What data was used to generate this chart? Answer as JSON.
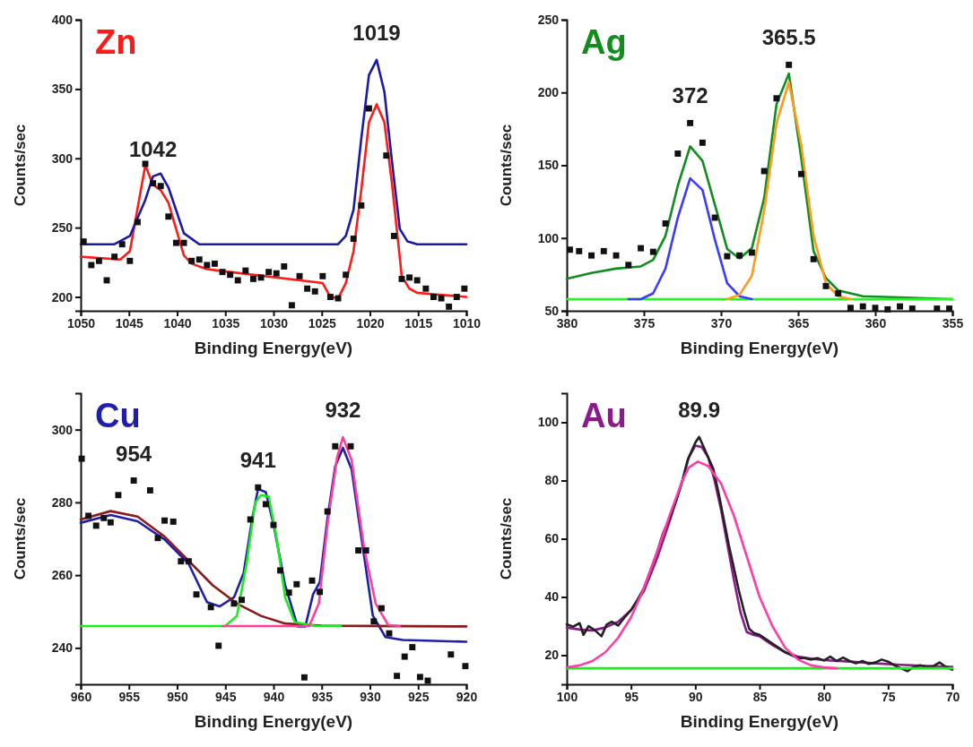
{
  "chart_data": [
    {
      "type": "line",
      "title": "Zn",
      "xlabel": "Binding Energy(eV)",
      "ylabel": "Counts/sec",
      "xlim": [
        1050,
        1010
      ],
      "xticks": [
        1050,
        1045,
        1040,
        1035,
        1030,
        1025,
        1020,
        1015,
        1010
      ],
      "ylim": [
        190,
        400
      ],
      "yticks": [
        200,
        250,
        300,
        350,
        400
      ],
      "annotations": [
        {
          "text": "1042",
          "x": 1042.5,
          "y": 287
        },
        {
          "text": "1019",
          "x": 1019.3,
          "y": 371
        }
      ],
      "series": [
        {
          "color": "#ff1a1a",
          "x": [
            1050,
            1045.9,
            1044.9,
            1043.3,
            1042.5,
            1041.7,
            1040.9,
            1039.3,
            1038.5,
            1036.9,
            1024.9,
            1024.1,
            1023.3,
            1022.5,
            1021.7,
            1020.9,
            1020.1,
            1019.3,
            1018.5,
            1017.7,
            1016.7,
            1015.9,
            1015.1,
            1013.4,
            1010
          ],
          "values": [
            229,
            227,
            233,
            295,
            281,
            277,
            268,
            230,
            224,
            220,
            210,
            200,
            199,
            210,
            233,
            277,
            326,
            339,
            326,
            281,
            215,
            206,
            203,
            202,
            200
          ]
        },
        {
          "color": "#1a1aa6",
          "x": [
            1050,
            1046.5,
            1044.9,
            1043.3,
            1042.5,
            1041.7,
            1040.9,
            1039.3,
            1037.7,
            1023.3,
            1022.5,
            1021.7,
            1020.9,
            1020.1,
            1019.3,
            1018.5,
            1017.7,
            1016.9,
            1016.1,
            1015.1,
            1010
          ],
          "values": [
            238,
            238,
            244,
            270,
            287,
            289,
            279,
            246,
            238,
            238,
            244,
            263,
            314,
            360,
            371,
            348,
            297,
            249,
            240,
            238,
            238
          ]
        },
        {
          "type": "scatter",
          "marker": "square",
          "color": "#111111",
          "x": [
            1049.7,
            1048.9,
            1048.1,
            1047.3,
            1046.5,
            1045.7,
            1044.9,
            1044.1,
            1043.3,
            1042.5,
            1041.7,
            1040.9,
            1040.1,
            1039.3,
            1038.5,
            1037.7,
            1036.9,
            1036.1,
            1035.3,
            1034.5,
            1033.7,
            1032.9,
            1032.1,
            1031.3,
            1030.5,
            1029.7,
            1028.9,
            1028.1,
            1027.3,
            1026.5,
            1025.7,
            1024.9,
            1024.1,
            1023.3,
            1022.5,
            1021.7,
            1020.9,
            1020.1,
            1018.3,
            1017.5,
            1016.7,
            1015.9,
            1015.1,
            1014.2,
            1013.4,
            1012.6,
            1011.8,
            1011,
            1010.2
          ],
          "values": [
            240,
            223,
            226,
            212,
            229,
            238,
            226,
            254,
            296,
            282,
            280,
            258,
            239,
            239,
            226,
            227,
            223,
            224,
            218,
            216,
            212,
            219,
            213,
            214,
            218,
            217,
            222,
            194,
            215,
            206,
            204,
            215,
            200,
            199,
            216,
            242,
            266,
            336,
            302,
            244,
            213,
            214,
            212,
            206,
            200,
            199,
            193,
            200,
            206
          ]
        }
      ]
    },
    {
      "type": "line",
      "title": "Ag",
      "xlabel": "Binding Energy(eV)",
      "ylabel": "Counts/sec",
      "xlim": [
        380,
        355
      ],
      "xticks": [
        380,
        375,
        370,
        365,
        360,
        355
      ],
      "ylim": [
        50,
        250
      ],
      "yticks": [
        50,
        100,
        150,
        200,
        250
      ],
      "annotations": [
        {
          "text": "372",
          "x": 372,
          "y": 179
        },
        {
          "text": "365.5",
          "x": 365.6,
          "y": 219
        }
      ],
      "series": [
        {
          "color": "#118c1f",
          "x": [
            380,
            378.4,
            376.8,
            375.2,
            374.4,
            373.6,
            372.8,
            372,
            371.2,
            370.4,
            369.6,
            368.8,
            368,
            367.2,
            366.4,
            365.6,
            364.8,
            364,
            363.2,
            362.4,
            360.8,
            355
          ],
          "values": [
            72,
            76,
            79,
            80.5,
            85,
            101.5,
            136,
            163,
            153,
            123,
            92.5,
            86,
            93,
            127.5,
            192,
            213,
            155,
            91,
            72.5,
            64,
            60,
            58
          ]
        },
        {
          "color": "#1aff1a",
          "x": [
            380,
            355
          ],
          "values": [
            58,
            58
          ]
        },
        {
          "color": "#3b3bff",
          "x": [
            376,
            375.2,
            374.4,
            373.6,
            372.8,
            372,
            371.2,
            370.4,
            369.6,
            368.8,
            368
          ],
          "values": [
            58,
            58,
            62,
            79,
            114,
            141,
            133,
            99,
            69,
            60,
            58
          ]
        },
        {
          "color": "#ff9a1a",
          "x": [
            369.6,
            368.8,
            368,
            367.2,
            366.4,
            365.6,
            364.8,
            364,
            363.2,
            362.4,
            361.6
          ],
          "values": [
            58,
            61,
            74,
            119,
            179,
            207,
            164,
            101.5,
            69,
            60,
            58
          ]
        },
        {
          "type": "scatter",
          "marker": "square",
          "color": "#111111",
          "x": [
            379.8,
            379.2,
            378.4,
            377.6,
            376.8,
            376,
            375.2,
            374.4,
            373.6,
            372.8,
            372,
            371.2,
            370.4,
            369.6,
            368.8,
            368,
            367.2,
            366.4,
            365.6,
            364.8,
            364,
            363.2,
            362.4,
            361.6,
            360.8,
            360,
            359.2,
            358.4,
            357.6,
            356,
            355.2
          ],
          "values": [
            92,
            91,
            88,
            91,
            88,
            81.5,
            93,
            90.5,
            110,
            158,
            179,
            165.5,
            114,
            87.5,
            88,
            90,
            146,
            196,
            219,
            144,
            85.5,
            67,
            62,
            52,
            53,
            52,
            51,
            53,
            51.5,
            51.5,
            51.5
          ]
        }
      ]
    },
    {
      "type": "line",
      "title": "Cu",
      "xlabel": "Binding Energy(eV)",
      "ylabel": "Counts/sec",
      "xlim": [
        960,
        920
      ],
      "xticks": [
        960,
        955,
        950,
        945,
        940,
        935,
        930,
        925,
        920
      ],
      "ylim": [
        230,
        310
      ],
      "yticks": [
        240,
        260,
        280,
        300
      ],
      "annotations": [
        {
          "text": "954",
          "x": 954.5,
          "y": 286
        },
        {
          "text": "941",
          "x": 941.6,
          "y": 284.1
        },
        {
          "text": "932",
          "x": 932.8,
          "y": 297.9
        }
      ],
      "series": [
        {
          "color": "#1f1fa8",
          "x": [
            960,
            956.9,
            954.1,
            951.3,
            948.8,
            946.9,
            945.6,
            944.1,
            943.1,
            942.2,
            941.6,
            940.8,
            940,
            938.8,
            937.5,
            936.7,
            935.9,
            935.2,
            934.4,
            933.6,
            932.8,
            931.9,
            930.9,
            929.7,
            928.4,
            926.6,
            920
          ],
          "values": [
            274.4,
            276.5,
            274.8,
            269.8,
            263.1,
            252.6,
            251.4,
            253.9,
            260.6,
            275.7,
            283.7,
            282.8,
            274,
            257.3,
            245.9,
            245.9,
            254.7,
            258.1,
            275.7,
            289.9,
            295,
            289.1,
            270.6,
            248.9,
            243,
            242.2,
            241.7
          ]
        },
        {
          "color": "#8b1a1a",
          "x": [
            960,
            956.9,
            954.1,
            951.3,
            948.8,
            946.3,
            943.8,
            941.3,
            938.8,
            935,
            920
          ],
          "values": [
            275.3,
            277.6,
            276.1,
            270.6,
            263.9,
            257.2,
            252.2,
            248.8,
            246.7,
            246.1,
            245.9
          ]
        },
        {
          "color": "#1aee1a",
          "x": [
            960,
            945,
            943.8,
            942.8,
            941.9,
            941.3,
            940.5,
            939.7,
            938.8,
            937.8,
            935.6,
            933
          ],
          "values": [
            246,
            246,
            248.8,
            263.1,
            279.9,
            282,
            281.6,
            270.6,
            253.9,
            247.1,
            246,
            246
          ]
        },
        {
          "color": "#ff3d9a",
          "x": [
            945.3,
            936.3,
            935.3,
            934.4,
            933.4,
            932.8,
            931.9,
            930.6,
            929.4,
            928.1,
            926.9
          ],
          "values": [
            246,
            246,
            252.2,
            274,
            292.4,
            297.9,
            291.6,
            267.3,
            252.2,
            246.3,
            246
          ]
        },
        {
          "type": "scatter",
          "marker": "square",
          "color": "#111111",
          "x": [
            959.9,
            959.2,
            958.4,
            957.6,
            956.9,
            956.1,
            954.5,
            952.8,
            952,
            951.3,
            950.4,
            949.6,
            948.8,
            948,
            946.5,
            945.7,
            944.1,
            943.3,
            942.4,
            941.6,
            940.8,
            940,
            939.3,
            938.4,
            937.6,
            936.8,
            936,
            935.2,
            934.4,
            933.6,
            932,
            931.2,
            930.4,
            929.6,
            928.8,
            928,
            927.2,
            926.4,
            925.6,
            924.8,
            924,
            921.6,
            920.1
          ],
          "values": [
            292,
            276.3,
            273.6,
            275.7,
            274.5,
            282,
            286,
            283.3,
            270.2,
            275,
            274.7,
            263.8,
            263.8,
            254.7,
            251.2,
            240.6,
            252.2,
            253.2,
            275.3,
            284.1,
            279.5,
            273.8,
            261.3,
            255.2,
            257.5,
            231.9,
            258.5,
            255.4,
            277.5,
            295.4,
            295.4,
            266.8,
            266.8,
            247.3,
            250.9,
            244,
            232.3,
            237.6,
            240.2,
            232,
            231,
            238.2,
            235
          ]
        }
      ]
    },
    {
      "type": "line",
      "title": "Au",
      "xlabel": "Binding Energy(eV)",
      "ylabel": "Counts/sec",
      "xlim": [
        100,
        70
      ],
      "xticks": [
        100,
        95,
        90,
        85,
        80,
        75,
        70
      ],
      "ylim": [
        10,
        110
      ],
      "yticks": [
        20,
        40,
        60,
        80,
        100
      ],
      "annotations": [
        {
          "text": "89.9",
          "x": 89.7,
          "y": 95
        }
      ],
      "series": [
        {
          "color": "#8b1a8b",
          "x": [
            100,
            99,
            98,
            97,
            96,
            95,
            94,
            93,
            92,
            91,
            90.5,
            90,
            89.5,
            89,
            88.5,
            88,
            87.5,
            87,
            86.5,
            86,
            85.5,
            85,
            84,
            83,
            82,
            81,
            80,
            78,
            76,
            74,
            72,
            70
          ],
          "values": [
            29.5,
            28.8,
            28.5,
            29.5,
            31.5,
            35.5,
            42,
            53,
            66,
            80,
            88,
            92,
            91.5,
            88,
            80,
            70,
            58,
            46,
            35,
            28,
            27,
            26.5,
            23.5,
            21,
            19.5,
            18.8,
            18.3,
            17.8,
            17.2,
            16.7,
            16.3,
            16
          ]
        },
        {
          "color": "#222222",
          "x": [
            100,
            99.5,
            99,
            98.7,
            98.3,
            97.8,
            97.3,
            96.9,
            96.5,
            96,
            95.5,
            95,
            94.5,
            94,
            93.5,
            93,
            92.5,
            92,
            91.5,
            91,
            90.6,
            90.3,
            90,
            89.7,
            89.4,
            89,
            88.6,
            88.2,
            87.8,
            87.4,
            87,
            86.6,
            86.2,
            85.8,
            85.4,
            85,
            84.5,
            84,
            83.5,
            83,
            82.5,
            82,
            81.5,
            81,
            80.5,
            80,
            79.5,
            79,
            78.5,
            78,
            77.5,
            77,
            76.5,
            76,
            75.5,
            75,
            74.5,
            74,
            73.5,
            73,
            72.5,
            72,
            71.5,
            71,
            70.5,
            70
          ],
          "values": [
            30.6,
            29.8,
            31,
            27,
            30,
            28.5,
            26.5,
            30.5,
            31.5,
            30.2,
            33,
            35.5,
            39,
            43,
            49,
            55,
            62,
            67,
            73,
            80,
            87,
            90,
            93,
            95,
            92,
            88,
            84,
            76,
            67,
            58,
            50,
            42,
            35,
            29,
            27.5,
            27,
            25.5,
            24,
            22.5,
            21,
            20,
            19,
            19,
            18.5,
            19,
            18.2,
            19.5,
            18,
            19.2,
            18,
            17.2,
            18,
            17,
            17.5,
            18.5,
            17.8,
            16.5,
            15.5,
            14.5,
            16,
            16.5,
            16,
            16.2,
            17.5,
            16,
            15
          ]
        },
        {
          "color": "#1aee1a",
          "x": [
            100,
            70
          ],
          "values": [
            15.5,
            15.5
          ]
        },
        {
          "color": "#ff3da8",
          "x": [
            100,
            99,
            98,
            97,
            96,
            95,
            94,
            93,
            92,
            91,
            90.5,
            89.8,
            89,
            88,
            87,
            86,
            85,
            84,
            83,
            82,
            81,
            80,
            79
          ],
          "values": [
            15.8,
            16.5,
            18,
            21,
            26,
            33,
            43,
            55,
            68,
            80,
            84.5,
            86.5,
            85,
            79,
            68,
            54,
            40,
            30,
            22.5,
            18.5,
            16.5,
            15.8,
            15.5
          ]
        }
      ]
    }
  ]
}
